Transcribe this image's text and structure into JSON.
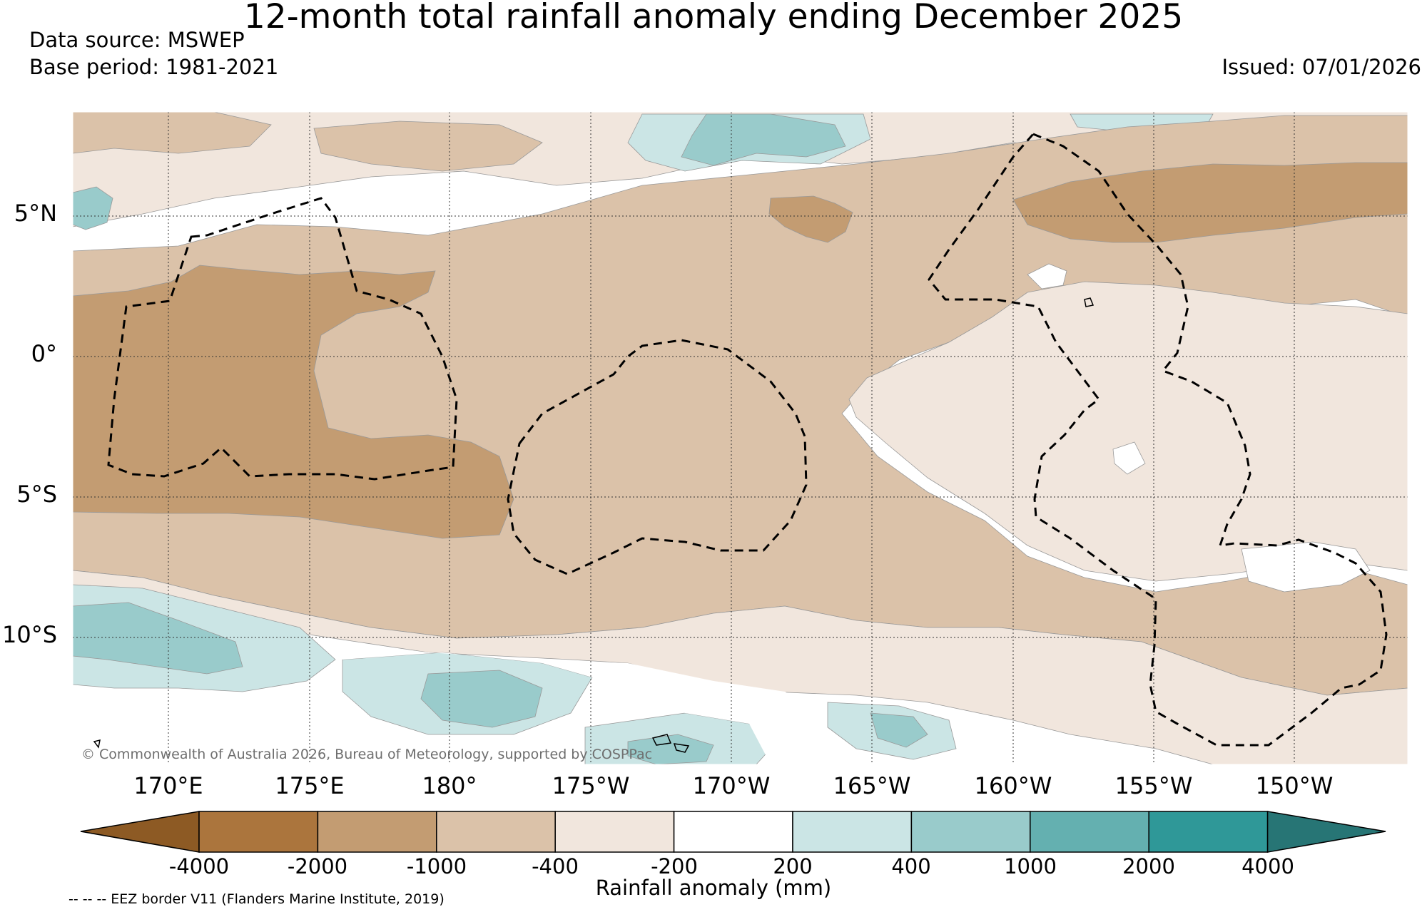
{
  "header": {
    "title": "12-month total rainfall anomaly ending December 2025",
    "data_source": "Data source: MSWEP",
    "base_period": "Base period: 1981-2021",
    "issued": "Issued: 07/01/2026"
  },
  "map": {
    "lat_labels": [
      "5°N",
      "0°",
      "5°S",
      "10°S"
    ],
    "lon_labels": [
      "170°E",
      "175°E",
      "180°",
      "175°W",
      "170°W",
      "165°W",
      "160°W",
      "155°W",
      "150°W"
    ],
    "copyright": "© Commonwealth of Australia 2026, Bureau of Meteorology, supported by COSPPac"
  },
  "colorbar": {
    "label": "Rainfall anomaly (mm)",
    "ticks": [
      "-4000",
      "-2000",
      "-1000",
      "-400",
      "-200",
      "200",
      "400",
      "1000",
      "2000",
      "4000"
    ],
    "colors": [
      "#8d5a24",
      "#ab753d",
      "#c39c72",
      "#dbc2a9",
      "#f1e6dd",
      "#ffffff",
      "#cbe5e5",
      "#99cbcb",
      "#64b0b0",
      "#2f9898",
      "#277575"
    ]
  },
  "legend": {
    "eez_note": "-- -- -- EEZ border V11 (Flanders Marine Institute, 2019)"
  }
}
